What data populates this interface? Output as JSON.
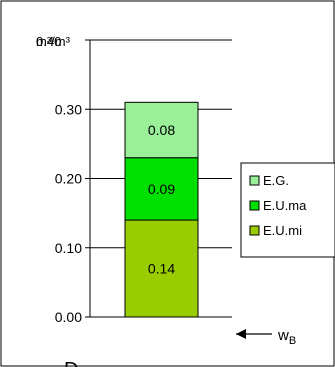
{
  "chart_data": {
    "type": "bar",
    "stacked": true,
    "categories": [
      ""
    ],
    "series": [
      {
        "name": "E.U.mi",
        "values": [
          0.14
        ],
        "color": "#9acd00"
      },
      {
        "name": "E.U.ma",
        "values": [
          0.09
        ],
        "color": "#00e000"
      },
      {
        "name": "E.G.",
        "values": [
          0.08
        ],
        "color": "#99f099"
      }
    ],
    "data_labels": [
      "0.14",
      "0.09",
      "0.08"
    ],
    "ylim": [
      0,
      0.4
    ],
    "yticks": [
      0.0,
      0.1,
      0.2,
      0.3
    ],
    "ytick_labels": [
      "0.00",
      "0.10",
      "0.20",
      "0.30"
    ],
    "y_unit_label": "m³/m³",
    "y_top_label": "0.40",
    "grid": true,
    "legend_position": "right",
    "bar_edge_color": "#000000",
    "grid_color": "#000000"
  },
  "annotation": {
    "arrow_label_main": "w",
    "arrow_label_sub": "B"
  },
  "bottom_caption": "D"
}
